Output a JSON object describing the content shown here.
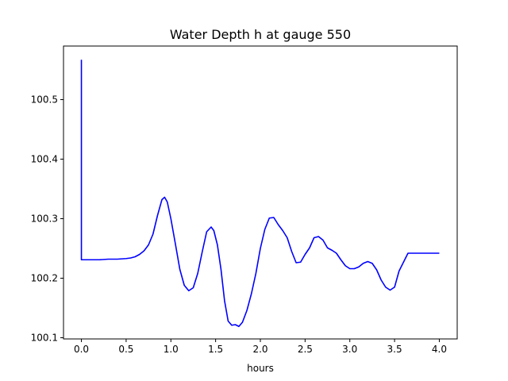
{
  "chart_data": {
    "type": "line",
    "title": "Water Depth h at gauge 550",
    "xlabel": "hours",
    "ylabel": "",
    "xlim": [
      -0.2,
      4.2
    ],
    "ylim": [
      100.098,
      100.59
    ],
    "xticks": [
      0.0,
      0.5,
      1.0,
      1.5,
      2.0,
      2.5,
      3.0,
      3.5,
      4.0
    ],
    "xtick_labels": [
      "0.0",
      "0.5",
      "1.0",
      "1.5",
      "2.0",
      "2.5",
      "3.0",
      "3.5",
      "4.0"
    ],
    "yticks": [
      100.1,
      100.2,
      100.3,
      100.4,
      100.5
    ],
    "ytick_labels": [
      "100.1",
      "100.2",
      "100.3",
      "100.4",
      "100.5"
    ],
    "grid": false,
    "legend": "none",
    "series_color": "#0000ff",
    "series": [
      {
        "x": [
          0.0,
          0.0,
          0.0,
          0.1,
          0.2,
          0.3,
          0.4,
          0.5,
          0.55,
          0.6,
          0.65,
          0.7,
          0.75,
          0.8,
          0.85,
          0.9,
          0.93,
          0.96,
          1.0,
          1.05,
          1.1,
          1.15,
          1.2,
          1.25,
          1.3,
          1.35,
          1.4,
          1.45,
          1.48,
          1.52,
          1.56,
          1.6,
          1.64,
          1.68,
          1.72,
          1.76,
          1.8,
          1.85,
          1.9,
          1.95,
          2.0,
          2.05,
          2.1,
          2.15,
          2.2,
          2.25,
          2.3,
          2.35,
          2.4,
          2.45,
          2.5,
          2.55,
          2.6,
          2.65,
          2.7,
          2.75,
          2.8,
          2.85,
          2.9,
          2.95,
          3.0,
          3.05,
          3.1,
          3.15,
          3.2,
          3.25,
          3.3,
          3.35,
          3.4,
          3.45,
          3.5,
          3.55,
          3.6,
          3.65,
          3.7,
          3.75,
          3.8,
          3.85,
          3.9,
          3.95,
          4.0
        ],
        "y": [
          100.567,
          100.567,
          100.231,
          100.231,
          100.231,
          100.232,
          100.232,
          100.233,
          100.234,
          100.236,
          100.24,
          100.246,
          100.256,
          100.274,
          100.305,
          100.332,
          100.336,
          100.328,
          100.3,
          100.258,
          100.215,
          100.188,
          100.179,
          100.184,
          100.208,
          100.244,
          100.278,
          100.286,
          100.28,
          100.256,
          100.215,
          100.162,
          100.128,
          100.121,
          100.122,
          100.119,
          100.126,
          100.146,
          100.174,
          100.208,
          100.25,
          100.282,
          100.301,
          100.302,
          100.29,
          100.28,
          100.268,
          100.245,
          100.226,
          100.227,
          100.24,
          100.251,
          100.268,
          100.27,
          100.264,
          100.251,
          100.247,
          100.242,
          100.231,
          100.221,
          100.216,
          100.216,
          100.219,
          100.225,
          100.228,
          100.225,
          100.214,
          100.197,
          100.185,
          100.18,
          100.185,
          100.212,
          100.227,
          100.242,
          100.242,
          100.242,
          100.242,
          100.242,
          100.242,
          100.242,
          100.242
        ]
      }
    ]
  }
}
